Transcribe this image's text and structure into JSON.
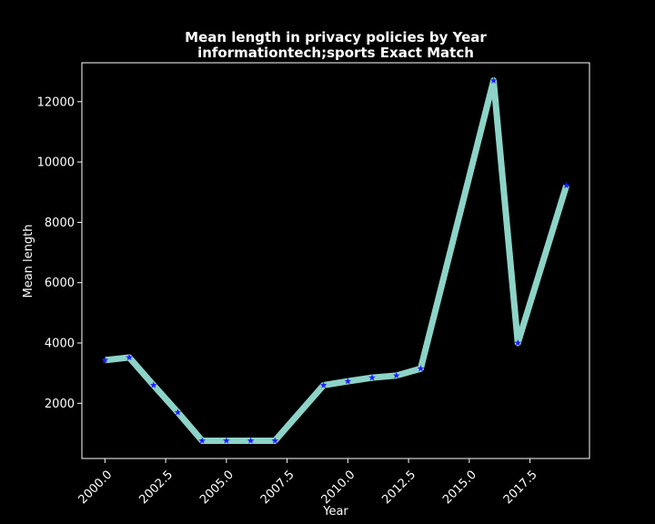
{
  "chart_data": {
    "type": "line",
    "title": "Mean length in privacy policies by Year",
    "subtitle": "informationtech;sports Exact Match",
    "xlabel": "Year",
    "ylabel": "Mean length",
    "xlim": [
      1999.05,
      2019.95
    ],
    "ylim": [
      170,
      13290
    ],
    "x_ticks": [
      2000.0,
      2002.5,
      2005.0,
      2007.5,
      2010.0,
      2012.5,
      2015.0,
      2017.5
    ],
    "x_tick_labels": [
      "2000.0",
      "2002.5",
      "2005.0",
      "2007.5",
      "2010.0",
      "2012.5",
      "2015.0",
      "2017.5"
    ],
    "y_ticks": [
      2000,
      4000,
      6000,
      8000,
      10000,
      12000
    ],
    "y_tick_labels": [
      "2000",
      "4000",
      "6000",
      "8000",
      "10000",
      "12000"
    ],
    "grid": false,
    "line_color": "#8dd3c7",
    "marker_color": "#1f1fff",
    "background_color": "#000000",
    "series": [
      {
        "x": [
          2000,
          2001,
          2002,
          2003,
          2004,
          2005,
          2006,
          2007,
          2009,
          2010,
          2011,
          2012,
          2013,
          2016,
          2017,
          2019
        ],
        "y": [
          3430,
          3520,
          2600,
          1700,
          760,
          760,
          760,
          760,
          2600,
          2730,
          2850,
          2920,
          3150,
          12700,
          4000,
          9220
        ]
      }
    ]
  }
}
